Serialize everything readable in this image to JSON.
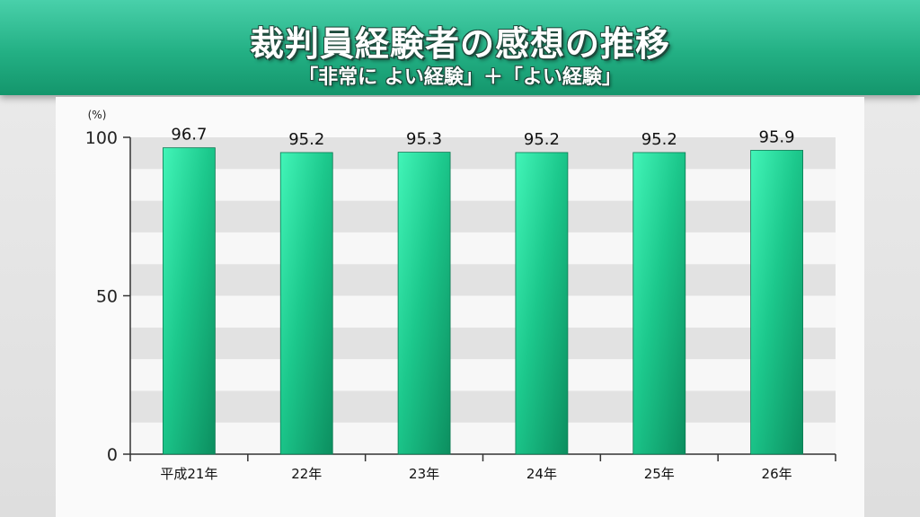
{
  "title": "裁判員経験者の感想の推移",
  "subtitle": "「非常に よい経験」＋「よい経験」",
  "chart_data": {
    "type": "bar",
    "categories": [
      "平成21年",
      "22年",
      "23年",
      "24年",
      "25年",
      "26年"
    ],
    "values": [
      96.7,
      95.2,
      95.3,
      95.2,
      95.2,
      95.9
    ],
    "value_labels": [
      "96.7",
      "95.2",
      "95.3",
      "95.2",
      "95.2",
      "95.9"
    ],
    "y_ticks": [
      "0",
      "50",
      "100"
    ],
    "y_unit": "(%)",
    "ylim": [
      0,
      100
    ],
    "bar_color": "#1fbf86",
    "bar_highlight": "#3cf2b3",
    "grid_band_color": "#e2e2e2"
  }
}
